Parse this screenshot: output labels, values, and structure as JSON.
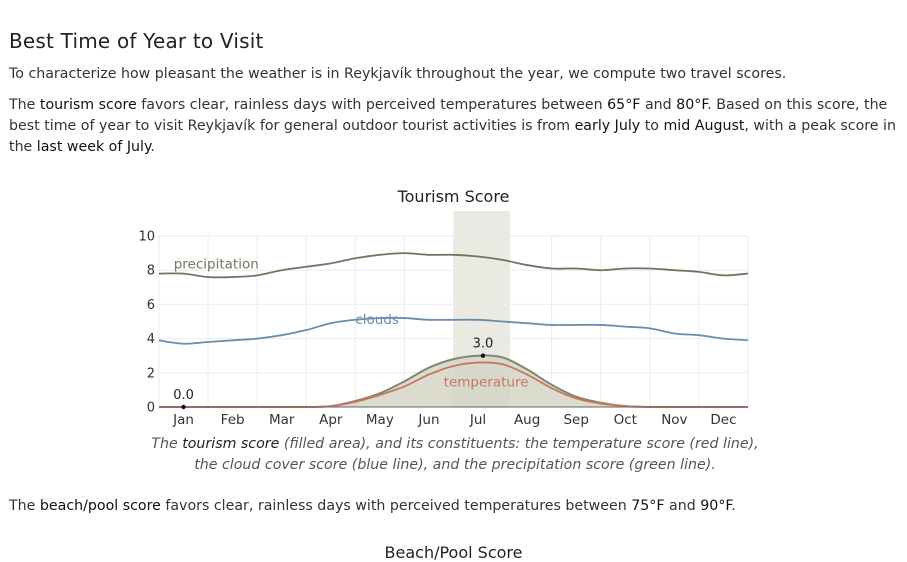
{
  "section": {
    "title": "Best Time of Year to Visit",
    "intro": "To characterize how pleasant the weather is in Reykjavík throughout the year, we compute two travel scores.",
    "tourism": {
      "t1": "The ",
      "score_name": "tourism score",
      "t2": " favors clear, rainless days with perceived temperatures between ",
      "temp_low": "65°F",
      "t3": " and ",
      "temp_high": "80°F",
      "t4": ". Based on this score, the best time of year to visit Reykjavík for general outdoor tourist activities is from ",
      "start": "early July",
      "t5": " to ",
      "end": "mid August",
      "t6": ", with a peak score in the ",
      "peak": "last week of July",
      "t7": "."
    },
    "caption": {
      "c1": "The ",
      "score_name": "tourism score",
      "c2": " (filled area), and its constituents: the temperature score (red line), the cloud cover score (blue line), and the precipitation score (green line)."
    },
    "beach": {
      "t1": "The ",
      "score_name": "beach/pool score",
      "t2": " favors clear, rainless days with perceived temperatures between ",
      "temp_low": "75°F",
      "t3": " and ",
      "temp_high": "90°F",
      "t4": "."
    },
    "next_chart_title": "Beach/Pool Score"
  },
  "chart_data": {
    "type": "area",
    "title": "Tourism Score",
    "x_unit": "month",
    "x_ticks": [
      "Jan",
      "Feb",
      "Mar",
      "Apr",
      "May",
      "Jun",
      "Jul",
      "Aug",
      "Sep",
      "Oct",
      "Nov",
      "Dec"
    ],
    "xlim": [
      0,
      12
    ],
    "ylim": [
      0,
      10
    ],
    "y_ticks": [
      "0",
      "2",
      "4",
      "6",
      "8",
      "10"
    ],
    "grid": true,
    "highlight_range": [
      6.0,
      7.15
    ],
    "x": [
      0,
      0.5,
      1,
      1.5,
      2,
      2.5,
      3,
      3.5,
      4,
      4.5,
      5,
      5.5,
      6,
      6.5,
      7,
      7.5,
      8,
      8.5,
      9,
      9.5,
      10,
      10.5,
      11,
      11.5,
      12
    ],
    "series": [
      {
        "name": "precipitation",
        "role": "line",
        "color": "#6a7a5e",
        "values": [
          7.8,
          7.8,
          7.6,
          7.6,
          7.7,
          8.0,
          8.2,
          8.4,
          8.7,
          8.9,
          9.0,
          8.9,
          8.9,
          8.8,
          8.6,
          8.3,
          8.1,
          8.1,
          8.0,
          8.1,
          8.1,
          8.0,
          7.9,
          7.7,
          7.8
        ]
      },
      {
        "name": "clouds",
        "role": "line",
        "color": "#6a8cae",
        "values": [
          3.9,
          3.7,
          3.8,
          3.9,
          4.0,
          4.2,
          4.5,
          4.9,
          5.1,
          5.2,
          5.2,
          5.1,
          5.1,
          5.1,
          5.0,
          4.9,
          4.8,
          4.8,
          4.8,
          4.7,
          4.6,
          4.3,
          4.2,
          4.0,
          3.9
        ]
      },
      {
        "name": "temperature",
        "role": "line",
        "color": "#c87660",
        "values": [
          0.0,
          0.0,
          0.0,
          0.0,
          0.0,
          0.0,
          0.0,
          0.05,
          0.3,
          0.7,
          1.2,
          1.9,
          2.4,
          2.6,
          2.5,
          1.9,
          1.1,
          0.5,
          0.2,
          0.05,
          0.0,
          0.0,
          0.0,
          0.0,
          0.0
        ]
      },
      {
        "name": "",
        "role": "filled",
        "color": "#d5d5c5",
        "values": [
          0.0,
          0.0,
          0.0,
          0.0,
          0.0,
          0.0,
          0.0,
          0.05,
          0.35,
          0.8,
          1.5,
          2.3,
          2.8,
          3.0,
          2.9,
          2.2,
          1.3,
          0.6,
          0.25,
          0.05,
          0.0,
          0.0,
          0.0,
          0.0,
          0.0
        ]
      }
    ],
    "annotations": [
      {
        "x": 0.5,
        "y": 0.0,
        "label": "0.0"
      },
      {
        "x": 6.6,
        "y": 3.0,
        "label": "3.0"
      }
    ]
  }
}
